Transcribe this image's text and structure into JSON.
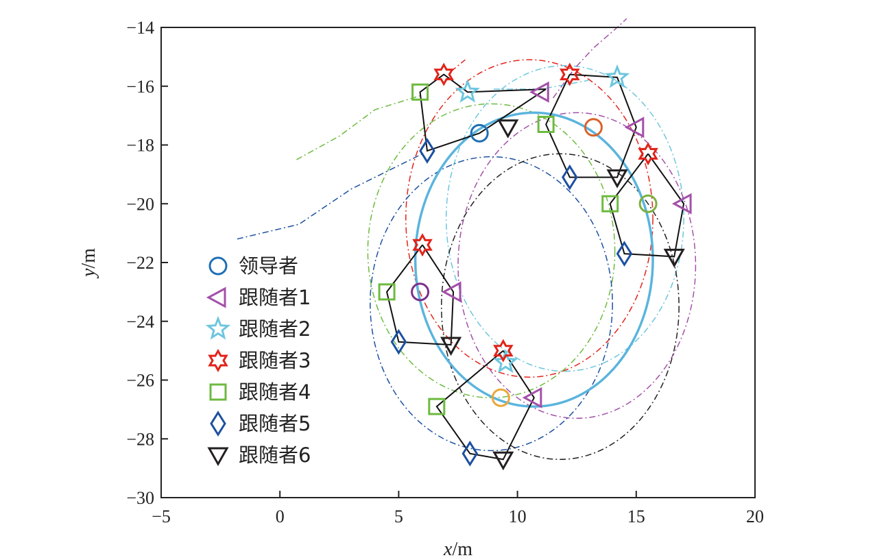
{
  "chart_data": {
    "type": "scatter",
    "title": "",
    "xlabel_italic": "x",
    "xlabel_unit": "/m",
    "ylabel_italic": "y",
    "ylabel_unit": "/m",
    "xlim": [
      -5,
      20
    ],
    "ylim": [
      -30,
      -14
    ],
    "xticks": [
      -5,
      0,
      5,
      10,
      15,
      20
    ],
    "yticks": [
      -30,
      -28,
      -26,
      -24,
      -22,
      -20,
      -18,
      -16,
      -14
    ],
    "xtick_labels": [
      "−5",
      "0",
      "5",
      "10",
      "15",
      "20"
    ],
    "ytick_labels": [
      "−30",
      "−28",
      "−26",
      "−24",
      "−22",
      "−20",
      "−18",
      "−16",
      "−14"
    ],
    "grid": false,
    "legend_position": "left-center",
    "leader_circle": {
      "cx": 10.7,
      "cy": -21.9,
      "rx": 5.0,
      "ry": 5.0,
      "color": "#5bb4dd"
    },
    "series": [
      {
        "name": "领导者",
        "marker": "circle",
        "color": "#1f6fb5",
        "points": [
          [
            8.4,
            -17.6
          ],
          [
            13.2,
            -17.4
          ],
          [
            15.5,
            -20.0
          ],
          [
            5.9,
            -23.0
          ],
          [
            9.3,
            -26.6
          ]
        ],
        "point_colors": [
          "#1f6fb5",
          "#d9622b",
          "#7bb040",
          "#7b2f8e",
          "#e9a73a"
        ]
      },
      {
        "name": "跟随者1",
        "marker": "triangle-left",
        "color": "#a350a8",
        "points": [
          [
            11.0,
            -16.2
          ],
          [
            15.0,
            -17.4
          ],
          [
            17.0,
            -20.0
          ],
          [
            7.3,
            -23.0
          ],
          [
            10.7,
            -26.6
          ]
        ],
        "trail": [
          [
            11.5,
            -16.4
          ],
          [
            12.4,
            -15.4
          ],
          [
            13.2,
            -14.7
          ],
          [
            14.2,
            -14.0
          ],
          [
            14.6,
            -13.7
          ]
        ]
      },
      {
        "name": "跟随者2",
        "marker": "star5",
        "color": "#6dc6dd",
        "points": [
          [
            7.9,
            -16.2
          ],
          [
            14.2,
            -15.7
          ],
          [
            9.5,
            -25.4
          ]
        ],
        "trail": [
          [
            9.0,
            -16.1
          ],
          [
            11.0,
            -16.1
          ],
          [
            13.0,
            -15.8
          ]
        ]
      },
      {
        "name": "跟随者3",
        "marker": "star6",
        "color": "#e2231a",
        "points": [
          [
            6.9,
            -15.6
          ],
          [
            12.2,
            -15.6
          ],
          [
            15.5,
            -18.3
          ],
          [
            6.0,
            -21.4
          ],
          [
            9.4,
            -25.0
          ]
        ],
        "trail": [
          [
            7.2,
            -15.5
          ],
          [
            7.8,
            -15.1
          ]
        ]
      },
      {
        "name": "跟随者4",
        "marker": "square",
        "color": "#6dba3f",
        "points": [
          [
            5.9,
            -16.2
          ],
          [
            11.2,
            -17.3
          ],
          [
            13.9,
            -20.0
          ],
          [
            4.5,
            -23.0
          ],
          [
            6.6,
            -26.9
          ]
        ],
        "trail": [
          [
            0.7,
            -18.5
          ],
          [
            2.5,
            -17.7
          ],
          [
            4.0,
            -16.8
          ],
          [
            6.0,
            -16.3
          ]
        ]
      },
      {
        "name": "跟随者5",
        "marker": "diamond",
        "color": "#1c50a0",
        "points": [
          [
            6.2,
            -18.2
          ],
          [
            12.2,
            -19.1
          ],
          [
            14.5,
            -21.7
          ],
          [
            5.0,
            -24.7
          ],
          [
            8.0,
            -28.5
          ]
        ],
        "trail": [
          [
            -1.8,
            -21.2
          ],
          [
            0.8,
            -20.7
          ],
          [
            3.0,
            -19.5
          ],
          [
            5.0,
            -18.7
          ],
          [
            6.0,
            -18.3
          ]
        ]
      },
      {
        "name": "跟随者6",
        "marker": "triangle-down",
        "color": "#231f20",
        "points": [
          [
            9.6,
            -17.4
          ],
          [
            14.2,
            -19.1
          ],
          [
            16.6,
            -21.8
          ],
          [
            7.2,
            -24.8
          ],
          [
            9.4,
            -28.7
          ]
        ]
      }
    ],
    "formation_polygons": [
      [
        [
          11.2,
          -16.1
        ],
        [
          7.9,
          -16.2
        ],
        [
          6.9,
          -15.6
        ],
        [
          5.9,
          -16.2
        ],
        [
          6.2,
          -18.2
        ],
        [
          8.4,
          -17.6
        ],
        [
          11.2,
          -16.1
        ]
      ],
      [
        [
          12.2,
          -15.6
        ],
        [
          14.2,
          -15.7
        ],
        [
          15.0,
          -17.4
        ],
        [
          14.2,
          -19.1
        ],
        [
          12.2,
          -19.1
        ],
        [
          11.2,
          -17.3
        ],
        [
          12.2,
          -15.6
        ]
      ],
      [
        [
          15.5,
          -18.3
        ],
        [
          17.0,
          -20.0
        ],
        [
          16.6,
          -21.8
        ],
        [
          14.5,
          -21.7
        ],
        [
          13.9,
          -20.0
        ],
        [
          15.5,
          -18.3
        ]
      ],
      [
        [
          6.0,
          -21.4
        ],
        [
          7.3,
          -23.0
        ],
        [
          7.2,
          -24.8
        ],
        [
          5.0,
          -24.7
        ],
        [
          4.5,
          -23.0
        ],
        [
          6.0,
          -21.4
        ]
      ],
      [
        [
          9.4,
          -25.0
        ],
        [
          10.7,
          -26.6
        ],
        [
          9.4,
          -28.7
        ],
        [
          8.0,
          -28.5
        ],
        [
          6.6,
          -26.9
        ],
        [
          9.4,
          -25.0
        ]
      ]
    ],
    "dashed_orbits": [
      {
        "color": "#e2231a",
        "cx": 10.5,
        "cy": -20.5,
        "rx": 5.2,
        "ry": 5.4
      },
      {
        "color": "#6dc6dd",
        "cx": 12.0,
        "cy": -20.5,
        "rx": 5.0,
        "ry": 5.2
      },
      {
        "color": "#a350a8",
        "cx": 12.5,
        "cy": -22.1,
        "rx": 5.0,
        "ry": 5.2
      },
      {
        "color": "#6dba3f",
        "cx": 8.9,
        "cy": -21.6,
        "rx": 5.2,
        "ry": 5.0
      },
      {
        "color": "#1c50a0",
        "cx": 8.9,
        "cy": -23.4,
        "rx": 5.1,
        "ry": 5.0
      },
      {
        "color": "#231f20",
        "cx": 11.8,
        "cy": -23.5,
        "rx": 5.0,
        "ry": 5.2
      }
    ]
  }
}
